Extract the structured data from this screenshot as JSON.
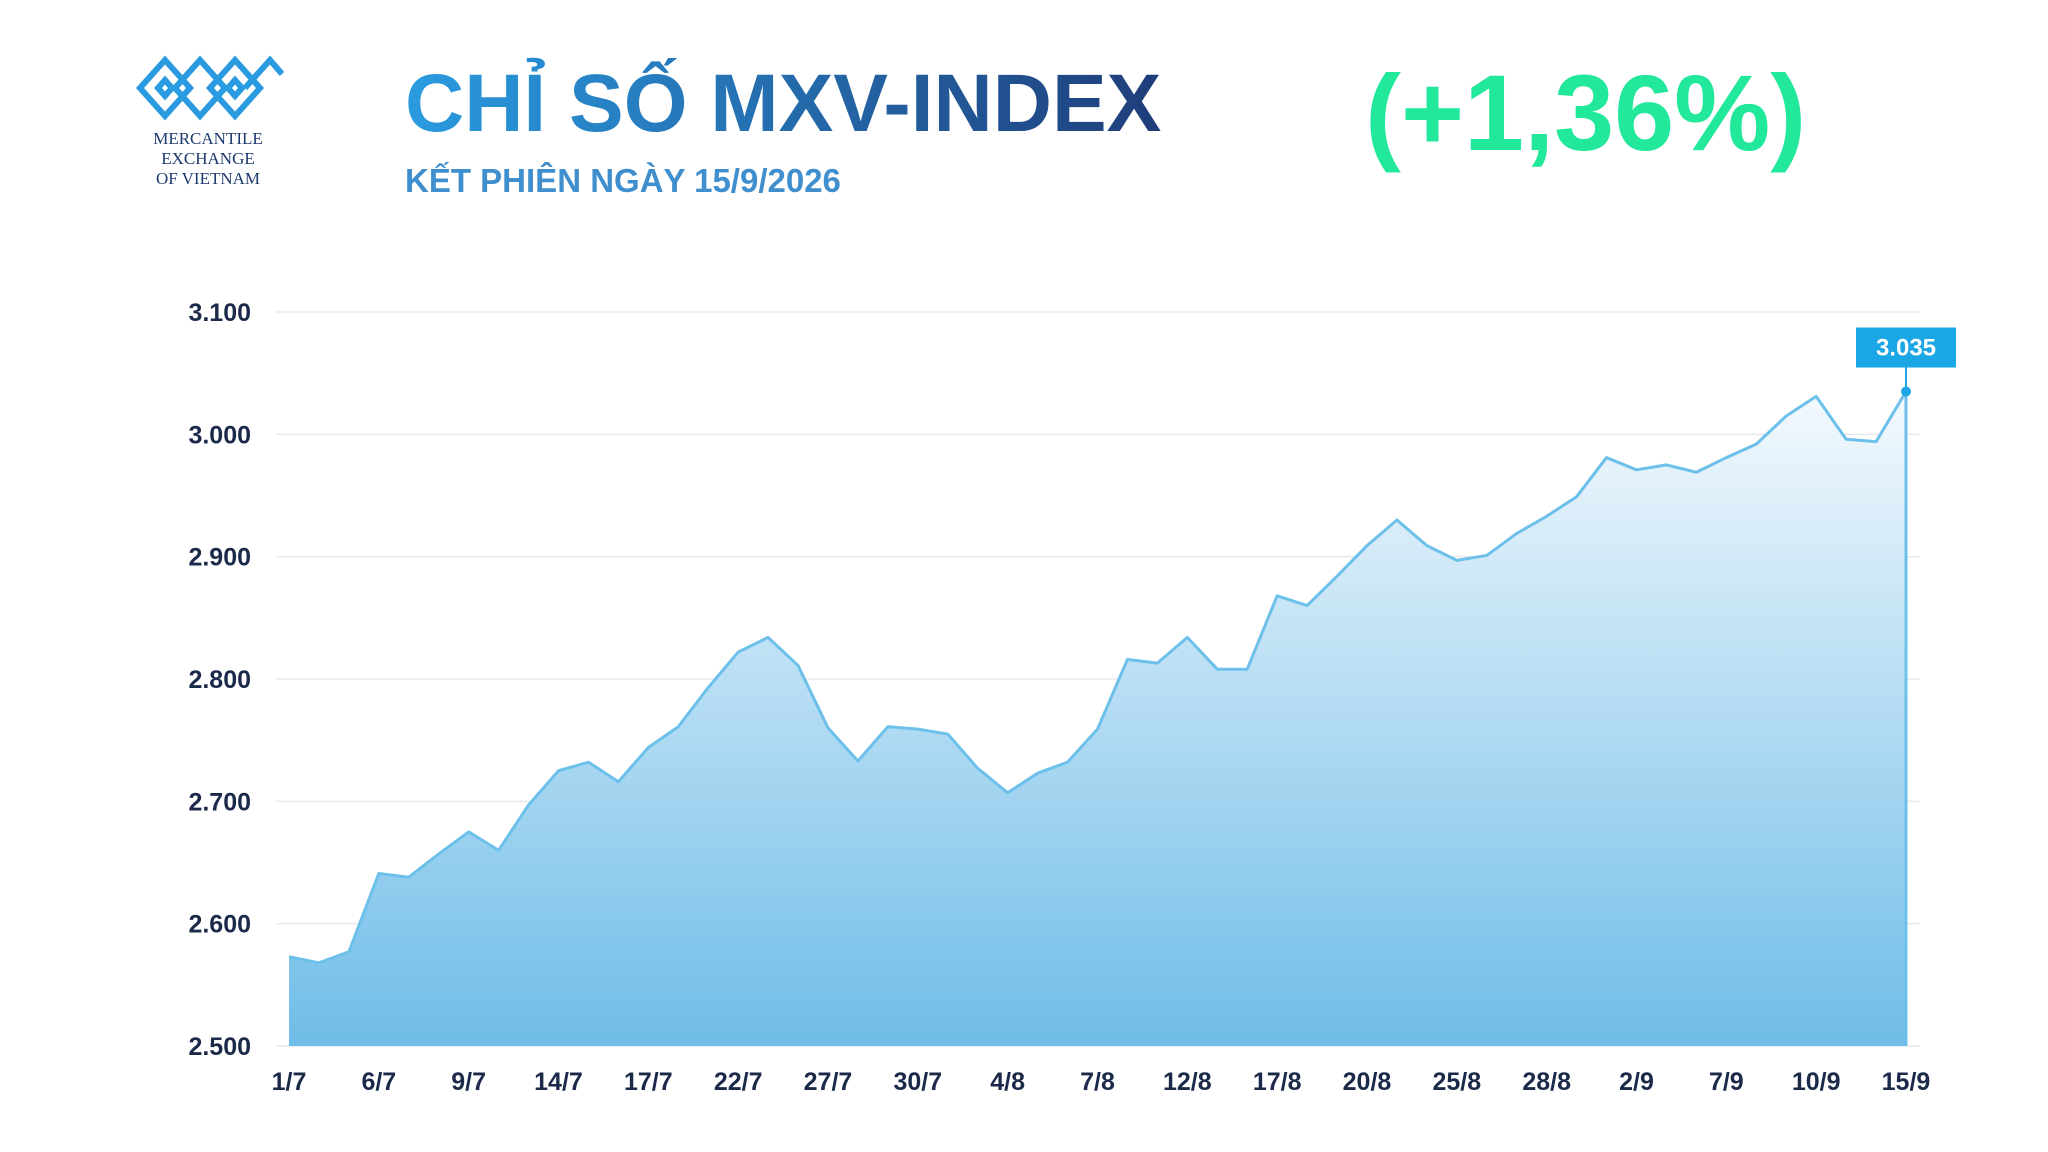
{
  "logo": {
    "lines": [
      "MERCANTILE",
      "EXCHANGE",
      "OF VIETNAM"
    ]
  },
  "chart_data": {
    "type": "area",
    "title": "CHỈ SỐ MXV-INDEX",
    "change": "(+1,36%)",
    "subtitle": "KẾT PHIÊN NGÀY 15/9/2026",
    "color": "#6cc0ea",
    "grid": true,
    "categories": [
      "1/7",
      null,
      null,
      "6/7",
      null,
      null,
      "9/7",
      null,
      null,
      "14/7",
      null,
      null,
      "17/7",
      null,
      null,
      "22/7",
      null,
      null,
      "27/7",
      null,
      null,
      "30/7",
      null,
      null,
      "4/8",
      null,
      null,
      "7/8",
      null,
      null,
      "12/8",
      null,
      null,
      "17/8",
      null,
      null,
      "20/8",
      null,
      null,
      "25/8",
      null,
      null,
      "28/8",
      null,
      null,
      "2/9",
      null,
      null,
      "7/9",
      null,
      null,
      "10/9",
      null,
      null,
      "15/9"
    ],
    "values": [
      2573,
      2568,
      2577,
      2641,
      2638,
      2657,
      2675,
      2660,
      2697,
      2725,
      2732,
      2716,
      2744,
      2761,
      2793,
      2822,
      2834,
      2811,
      2760,
      2733,
      2761,
      2759,
      2755,
      2727,
      2707,
      2723,
      2732,
      2759,
      2816,
      2813,
      2834,
      2808,
      2808,
      2868,
      2860,
      2884,
      2909,
      2930,
      2909,
      2897,
      2901,
      2919,
      2933,
      2949,
      2981,
      2971,
      2975,
      2969,
      2981,
      2992,
      3015,
      3031,
      2996,
      2994,
      3035
    ],
    "value_labels": [
      null,
      null,
      null,
      null,
      null,
      null,
      null,
      null,
      null,
      null,
      null,
      null,
      null,
      null,
      null,
      null,
      null,
      null,
      null,
      null,
      null,
      null,
      null,
      null,
      null,
      null,
      null,
      null,
      null,
      null,
      null,
      null,
      null,
      null,
      null,
      null,
      null,
      null,
      null,
      null,
      null,
      null,
      null,
      null,
      null,
      null,
      null,
      null,
      null,
      null,
      null,
      null,
      null,
      null,
      "3.035"
    ],
    "ylim": [
      2500,
      3100
    ],
    "yticks": [
      {
        "value": 2500,
        "label": "2.500"
      },
      {
        "value": 2600,
        "label": "2.600"
      },
      {
        "value": 2700,
        "label": "2.700"
      },
      {
        "value": 2800,
        "label": "2.800"
      },
      {
        "value": 2900,
        "label": "2.900"
      },
      {
        "value": 3000,
        "label": "3.000"
      },
      {
        "value": 3100,
        "label": "3.100"
      }
    ]
  }
}
